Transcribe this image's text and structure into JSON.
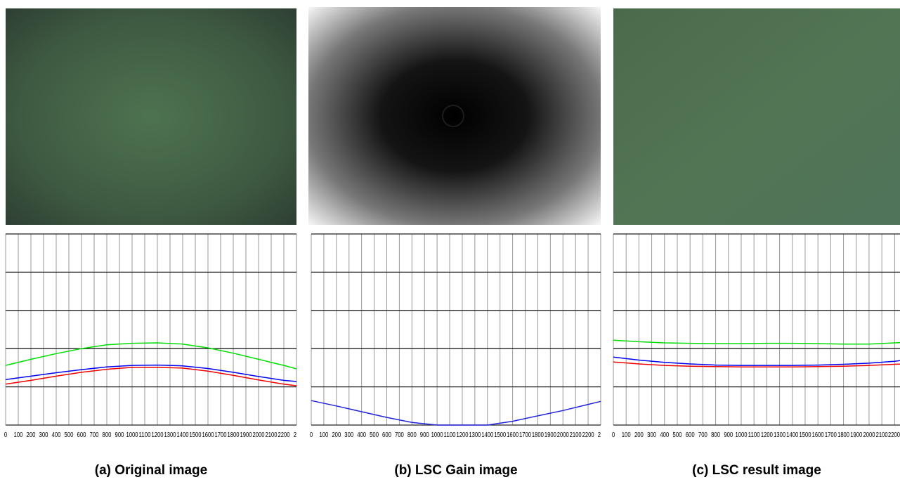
{
  "chart_data": [
    {
      "type": "line",
      "title": "(a) Original image",
      "x": [
        0,
        200,
        400,
        600,
        800,
        1000,
        1200,
        1400,
        1600,
        1800,
        2000,
        2200,
        2300
      ],
      "series": [
        {
          "color": "#00dd00",
          "values": [
            1.56,
            1.72,
            1.87,
            2.0,
            2.1,
            2.14,
            2.15,
            2.12,
            2.02,
            1.88,
            1.72,
            1.56,
            1.47
          ]
        },
        {
          "color": "#0000ee",
          "values": [
            1.19,
            1.28,
            1.37,
            1.45,
            1.52,
            1.56,
            1.57,
            1.55,
            1.48,
            1.38,
            1.27,
            1.17,
            1.14
          ]
        },
        {
          "color": "#ee0000",
          "values": [
            1.07,
            1.17,
            1.28,
            1.38,
            1.46,
            1.51,
            1.51,
            1.49,
            1.41,
            1.3,
            1.18,
            1.07,
            1.03
          ]
        }
      ],
      "xlim": [
        0,
        2300
      ],
      "xticks": [
        0,
        100,
        200,
        300,
        400,
        500,
        600,
        700,
        800,
        900,
        1000,
        1100,
        1200,
        1300,
        1400,
        1500,
        1600,
        1700,
        1800,
        1900,
        2000,
        2100,
        2200,
        {
          "value": 2300,
          "label": "2"
        }
      ],
      "ylim": [
        0,
        5
      ],
      "yticks": [
        0,
        1,
        2,
        3,
        4,
        5
      ],
      "grid": true
    },
    {
      "type": "line",
      "title": "(b) LSC Gain image",
      "x": [
        0,
        200,
        400,
        600,
        800,
        1000,
        1200,
        1400,
        1600,
        1800,
        2000,
        2200,
        2300
      ],
      "series": [
        {
          "color": "#2222dd",
          "values": [
            0.64,
            0.5,
            0.35,
            0.2,
            0.07,
            0,
            0,
            0,
            0.1,
            0.24,
            0.38,
            0.54,
            0.62
          ]
        }
      ],
      "xlim": [
        0,
        2300
      ],
      "xticks": [
        0,
        100,
        200,
        300,
        400,
        500,
        600,
        700,
        800,
        900,
        1000,
        1100,
        1200,
        1300,
        1400,
        1500,
        1600,
        1700,
        1800,
        1900,
        2000,
        2100,
        2200,
        {
          "value": 2300,
          "label": "2"
        }
      ],
      "ylim": [
        0,
        5
      ],
      "yticks": [
        0,
        1,
        2,
        3,
        4,
        5
      ],
      "grid": true
    },
    {
      "type": "line",
      "title": "(c) LSC result image",
      "x": [
        0,
        200,
        400,
        600,
        800,
        1000,
        1200,
        1400,
        1600,
        1800,
        2000,
        2200,
        2300
      ],
      "series": [
        {
          "color": "#00dd00",
          "values": [
            2.22,
            2.18,
            2.15,
            2.14,
            2.13,
            2.13,
            2.14,
            2.14,
            2.13,
            2.12,
            2.12,
            2.15,
            2.17
          ]
        },
        {
          "color": "#0000ee",
          "values": [
            1.78,
            1.7,
            1.64,
            1.6,
            1.57,
            1.56,
            1.56,
            1.56,
            1.57,
            1.59,
            1.62,
            1.67,
            1.71
          ]
        },
        {
          "color": "#ee0000",
          "values": [
            1.65,
            1.6,
            1.56,
            1.54,
            1.53,
            1.52,
            1.52,
            1.52,
            1.53,
            1.54,
            1.56,
            1.59,
            1.6
          ]
        }
      ],
      "xlim": [
        0,
        2300
      ],
      "xticks": [
        0,
        100,
        200,
        300,
        400,
        500,
        600,
        700,
        800,
        900,
        1000,
        1100,
        1200,
        1300,
        1400,
        1500,
        1600,
        1700,
        1800,
        1900,
        2000,
        2100,
        2200
      ],
      "ylim": [
        0,
        5
      ],
      "yticks": [
        0,
        1,
        2,
        3,
        4,
        5
      ],
      "grid": true
    }
  ]
}
